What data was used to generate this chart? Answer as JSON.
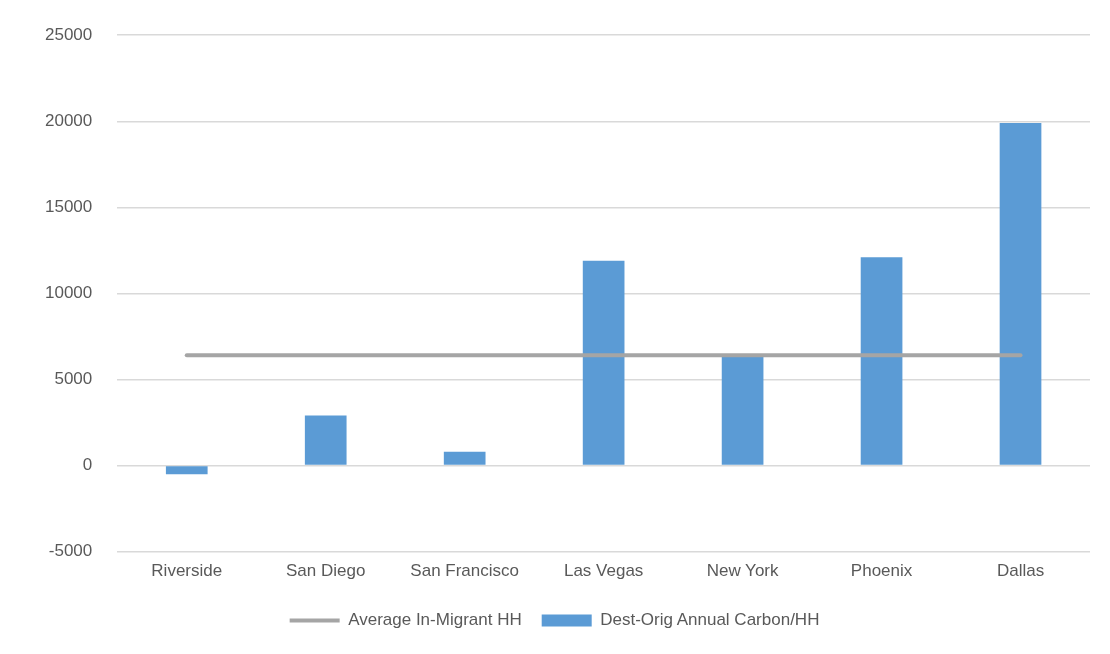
{
  "chart_data": {
    "type": "bar",
    "categories": [
      "Riverside",
      "San Diego",
      "San Francisco",
      "Las Vegas",
      "New York",
      "Phoenix",
      "Dallas"
    ],
    "series": [
      {
        "name": "Dest-Orig Annual Carbon/HH",
        "color": "#5b9bd5",
        "values": [
          -500,
          2900,
          800,
          11900,
          6300,
          12100,
          19900
        ]
      },
      {
        "name": "Average In-Migrant HH",
        "type": "line",
        "color": "#a5a5a5",
        "values": [
          6400,
          6400,
          6400,
          6400,
          6400,
          6400,
          6400
        ]
      }
    ],
    "ylim": [
      -5000,
      25000
    ],
    "yticks": [
      -5000,
      0,
      5000,
      10000,
      15000,
      20000,
      25000
    ],
    "grid": "y",
    "legend": "bottom",
    "marker": "none"
  }
}
